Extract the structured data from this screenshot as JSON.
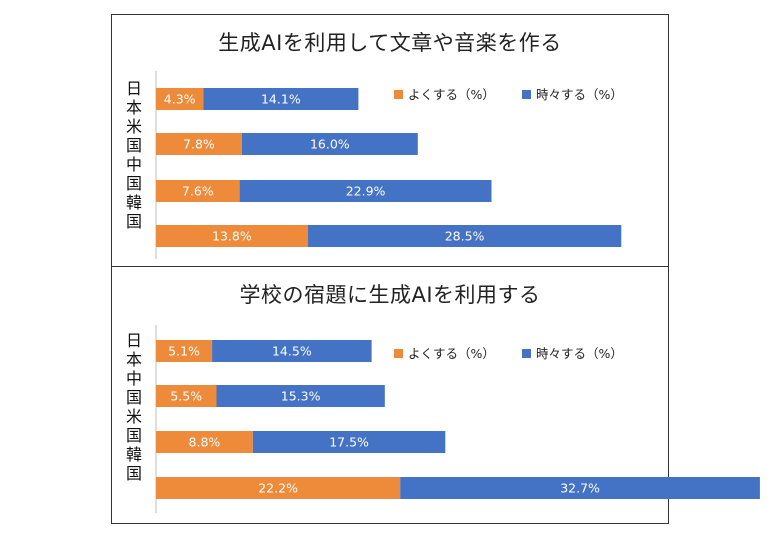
{
  "colors": {
    "often": "#ED8B3B",
    "sometimes": "#4472C4",
    "axis": "#bfbfbf"
  },
  "chart_data": [
    {
      "type": "bar",
      "orientation": "horizontal",
      "stacked": true,
      "title": "生成AIを利用して文章や音楽を作る",
      "category_label_text": "日本米国中国韓国",
      "categories": [
        "日本",
        "米国",
        "中国",
        "韓国"
      ],
      "series": [
        {
          "name": "よくする（%）",
          "values": [
            4.3,
            7.8,
            7.6,
            13.8
          ],
          "labels": [
            "4.3%",
            "7.8%",
            "7.6%",
            "13.8%"
          ]
        },
        {
          "name": "時々する（%）",
          "values": [
            14.1,
            16.0,
            22.9,
            28.5
          ],
          "labels": [
            "14.1%",
            "16.0%",
            "22.9%",
            "28.5%"
          ]
        }
      ],
      "legend": "top-right",
      "grid": false
    },
    {
      "type": "bar",
      "orientation": "horizontal",
      "stacked": true,
      "title": "学校の宿題に生成AIを利用する",
      "category_label_text": "日本中国米国韓国",
      "categories": [
        "日本",
        "中国",
        "米国",
        "韓国"
      ],
      "series": [
        {
          "name": "よくする（%）",
          "values": [
            5.1,
            5.5,
            8.8,
            22.2
          ],
          "labels": [
            "5.1%",
            "5.5%",
            "8.8%",
            "22.2%"
          ]
        },
        {
          "name": "時々する（%）",
          "values": [
            14.5,
            15.3,
            17.5,
            32.7
          ],
          "labels": [
            "14.5%",
            "15.3%",
            "17.5%",
            "32.7%"
          ]
        }
      ],
      "legend": "top-right",
      "grid": false
    }
  ]
}
